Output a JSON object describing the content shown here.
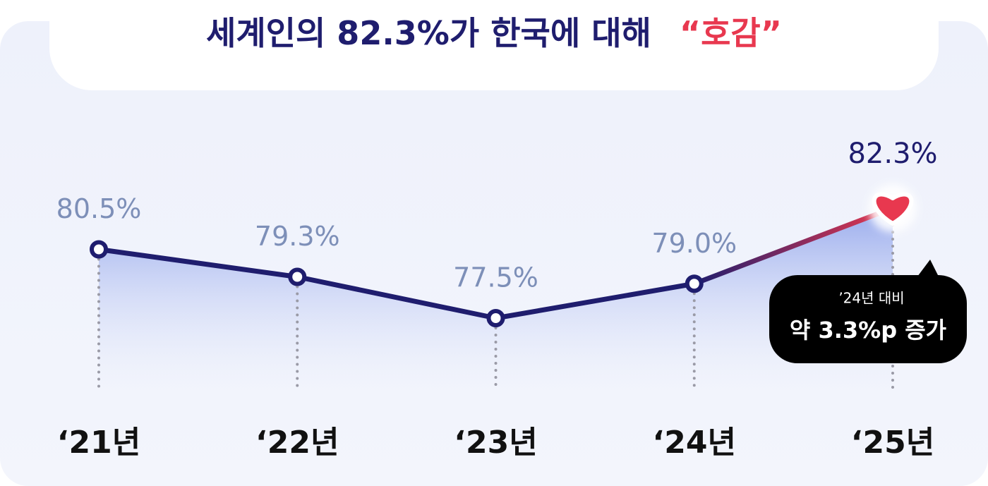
{
  "chart_data": {
    "type": "line",
    "title": [
      "세계인의 82.3%가 한국에 대해",
      "“호감”"
    ],
    "categories": [
      "‘21년",
      "‘22년",
      "‘23년",
      "‘24년",
      "‘25년"
    ],
    "series": [
      {
        "name": null,
        "color": "#1f1d6e",
        "values": [
          80.5,
          79.3,
          77.5,
          79.0,
          82.3
        ],
        "value_labels": [
          "80.5%",
          "79.3%",
          "77.5%",
          "79.0%",
          "82.3%"
        ]
      }
    ],
    "highlight_color": "#e8384f",
    "annotation": [
      "’24년 대비",
      "약 3.3%p 증가"
    ]
  }
}
